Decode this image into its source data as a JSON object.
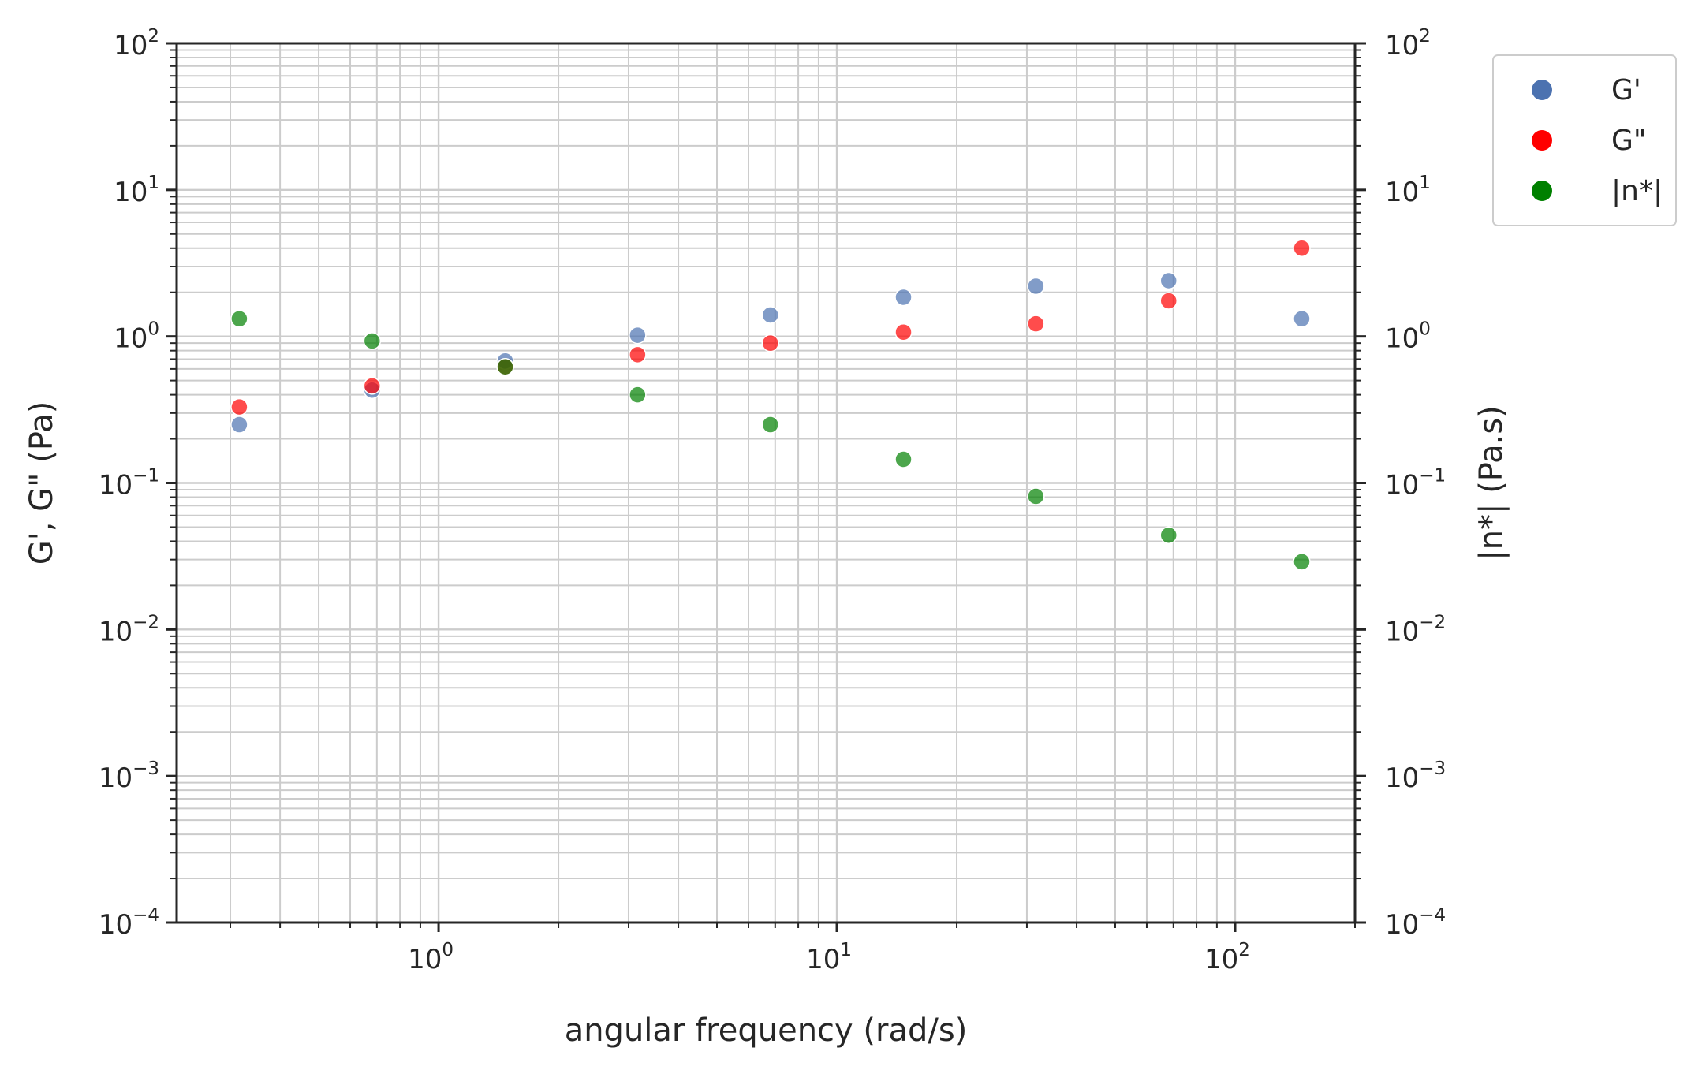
{
  "chart_data": {
    "type": "scatter",
    "x_scale": "log",
    "y_scale": "log",
    "xlabel": "angular frequency (rad/s)",
    "ylabel_left": "G', G\" (Pa)",
    "ylabel_right": "|n*| (Pa.s)",
    "xlim": [
      0.22,
      200
    ],
    "ylim_left": [
      0.0001,
      100
    ],
    "ylim_right": [
      0.0001,
      100
    ],
    "grid": true,
    "legend_position": "outside-top-right",
    "x_ticks": [
      {
        "value": 1,
        "base": "10",
        "exp": "0"
      },
      {
        "value": 10,
        "base": "10",
        "exp": "1"
      },
      {
        "value": 100,
        "base": "10",
        "exp": "2"
      }
    ],
    "y_ticks_left": [
      {
        "value": 0.0001,
        "base": "10",
        "exp": "−4"
      },
      {
        "value": 0.001,
        "base": "10",
        "exp": "−3"
      },
      {
        "value": 0.01,
        "base": "10",
        "exp": "−2"
      },
      {
        "value": 0.1,
        "base": "10",
        "exp": "−1"
      },
      {
        "value": 1,
        "base": "10",
        "exp": "0"
      },
      {
        "value": 10,
        "base": "10",
        "exp": "1"
      },
      {
        "value": 100,
        "base": "10",
        "exp": "2"
      }
    ],
    "y_ticks_right": [
      {
        "value": 0.0001,
        "base": "10",
        "exp": "−4"
      },
      {
        "value": 0.001,
        "base": "10",
        "exp": "−3"
      },
      {
        "value": 0.01,
        "base": "10",
        "exp": "−2"
      },
      {
        "value": 0.1,
        "base": "10",
        "exp": "−1"
      },
      {
        "value": 1,
        "base": "10",
        "exp": "0"
      },
      {
        "value": 10,
        "base": "10",
        "exp": "1"
      },
      {
        "value": 100,
        "base": "10",
        "exp": "2"
      }
    ],
    "x": [
      0.316,
      0.681,
      1.47,
      3.16,
      6.81,
      14.7,
      31.6,
      68.1,
      147
    ],
    "series": [
      {
        "name": "G'",
        "axis": "left",
        "color": "#4c72b0",
        "values": [
          0.25,
          0.43,
          0.68,
          1.02,
          1.4,
          1.85,
          2.2,
          2.4,
          1.32
        ]
      },
      {
        "name": "G\"",
        "axis": "left",
        "color": "#ff0000",
        "values": [
          0.33,
          0.46,
          0.62,
          0.75,
          0.9,
          1.07,
          1.22,
          1.75,
          4.0
        ]
      },
      {
        "name": "|n*|",
        "axis": "right",
        "color": "#008000",
        "values": [
          1.32,
          0.93,
          0.62,
          0.4,
          0.25,
          0.145,
          0.081,
          0.044,
          0.029
        ]
      }
    ]
  }
}
